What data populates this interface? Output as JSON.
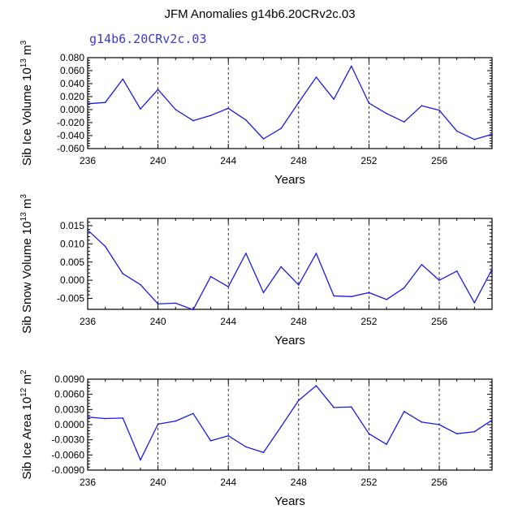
{
  "figure": {
    "title": "JFM Anomalies g14b6.20CRv2c.03",
    "subtitle": "g14b6.20CRv2c.03",
    "line_color": "#1a1ae6"
  },
  "chart_data": [
    {
      "type": "line",
      "ylabel": "Sib Ice Volume 10",
      "ylabel_exp": "13",
      "ylabel_unit": " m",
      "ylabel_unit_exp": "3",
      "xlabel": "Years",
      "xlim": [
        236,
        259
      ],
      "ylim": [
        -0.06,
        0.08
      ],
      "xticks": [
        236,
        240,
        244,
        248,
        252,
        256
      ],
      "yticks": [
        -0.06,
        -0.04,
        -0.02,
        0.0,
        0.02,
        0.04,
        0.06,
        0.08
      ],
      "ytick_labels": [
        "-0.060",
        "-0.040",
        "-0.020",
        "0.000",
        "0.020",
        "0.040",
        "0.060",
        "0.080"
      ],
      "x": [
        236,
        237,
        238,
        239,
        240,
        241,
        242,
        243,
        244,
        245,
        246,
        247,
        248,
        249,
        250,
        251,
        252,
        253,
        254,
        255,
        256,
        257,
        258,
        259
      ],
      "values": [
        0.009,
        0.011,
        0.047,
        0.001,
        0.031,
        0.0,
        -0.017,
        -0.009,
        0.002,
        -0.016,
        -0.045,
        -0.029,
        0.011,
        0.05,
        0.016,
        0.067,
        0.01,
        -0.006,
        -0.019,
        0.006,
        -0.001,
        -0.033,
        -0.046,
        -0.038
      ]
    },
    {
      "type": "line",
      "ylabel": "Sib Snow Volume 10",
      "ylabel_exp": "13",
      "ylabel_unit": " m",
      "ylabel_unit_exp": "3",
      "xlabel": "Years",
      "xlim": [
        236,
        259
      ],
      "ylim": [
        -0.008,
        0.017
      ],
      "xticks": [
        236,
        240,
        244,
        248,
        252,
        256
      ],
      "yticks": [
        -0.005,
        0.0,
        0.005,
        0.01,
        0.015
      ],
      "ytick_labels": [
        "-0.005",
        "0.000",
        "0.005",
        "0.010",
        "0.015"
      ],
      "x": [
        236,
        237,
        238,
        239,
        240,
        241,
        242,
        243,
        244,
        245,
        246,
        247,
        248,
        249,
        250,
        251,
        252,
        253,
        254,
        255,
        256,
        257,
        258,
        259
      ],
      "values": [
        0.0138,
        0.0093,
        0.0018,
        -0.0012,
        -0.0065,
        -0.0063,
        -0.0081,
        0.001,
        -0.0018,
        0.0074,
        -0.0034,
        0.0037,
        -0.0013,
        0.0074,
        -0.0043,
        -0.0045,
        -0.0034,
        -0.0053,
        -0.0021,
        0.0043,
        0.0,
        0.0025,
        -0.0062,
        0.003
      ]
    },
    {
      "type": "line",
      "ylabel": "Sib Ice Area 10",
      "ylabel_exp": "12",
      "ylabel_unit": " m",
      "ylabel_unit_exp": "2",
      "xlabel": "Years",
      "xlim": [
        236,
        259
      ],
      "ylim": [
        -0.009,
        0.009
      ],
      "xticks": [
        236,
        240,
        244,
        248,
        252,
        256
      ],
      "yticks": [
        -0.009,
        -0.006,
        -0.003,
        0.0,
        0.003,
        0.006,
        0.009
      ],
      "ytick_labels": [
        "-0.0090",
        "-0.0060",
        "-0.0030",
        "0.0000",
        "0.0030",
        "0.0060",
        "0.0090"
      ],
      "x": [
        236,
        237,
        238,
        239,
        240,
        241,
        242,
        243,
        244,
        245,
        246,
        247,
        248,
        249,
        250,
        251,
        252,
        253,
        254,
        255,
        256,
        257,
        258,
        259
      ],
      "values": [
        0.0015,
        0.0012,
        0.0013,
        -0.007,
        0.0001,
        0.0007,
        0.0022,
        -0.0032,
        -0.0022,
        -0.0044,
        -0.0055,
        -0.0004,
        0.0048,
        0.0077,
        0.0034,
        0.0035,
        -0.0018,
        -0.0039,
        0.0026,
        0.0005,
        0.0,
        -0.0018,
        -0.0014,
        0.0009
      ]
    }
  ]
}
